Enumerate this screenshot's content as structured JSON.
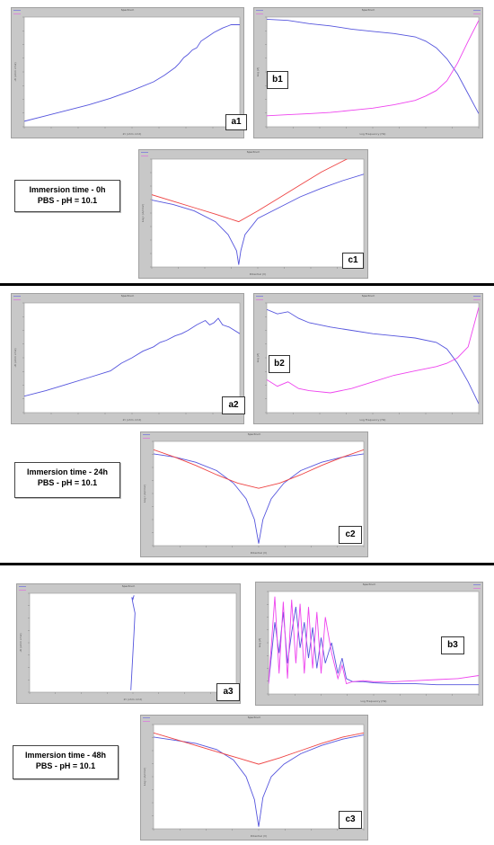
{
  "sections": [
    {
      "info": {
        "line1": "Immersion time - 0h",
        "line2": "PBS - pH = 10.1"
      },
      "charts": [
        {
          "label": "a1",
          "window_title": "Spectrum",
          "xlabel": "Zr (ohm cm2)",
          "ylabel": "-Zi (ohm cm2)"
        },
        {
          "label": "b1",
          "window_title": "Spectrum",
          "xlabel": "Log Frequency (Hz)",
          "ylabel": "Log |Z|"
        },
        {
          "label": "c1",
          "window_title": "Spectrum",
          "xlabel": "Potential (V)",
          "ylabel": "Log i (A/cm2)"
        }
      ]
    },
    {
      "info": {
        "line1": "Immersion time - 24h",
        "line2": "PBS - pH = 10.1"
      },
      "charts": [
        {
          "label": "a2",
          "window_title": "Spectrum",
          "xlabel": "Zr (ohm cm2)",
          "ylabel": "-Zi (ohm cm2)"
        },
        {
          "label": "b2",
          "window_title": "Spectrum",
          "xlabel": "Log Frequency (Hz)",
          "ylabel": "Log |Z|"
        },
        {
          "label": "c2",
          "window_title": "Spectrum",
          "xlabel": "Potential (V)",
          "ylabel": "Log i (A/cm2)"
        }
      ]
    },
    {
      "info": {
        "line1": "Immersion time - 48h",
        "line2": "PBS - pH = 10.1"
      },
      "charts": [
        {
          "label": "a3",
          "window_title": "Spectrum",
          "xlabel": "Zr (ohm cm2)",
          "ylabel": "-Zi (ohm cm2)"
        },
        {
          "label": "b3",
          "window_title": "Spectrum",
          "xlabel": "Log Frequency (Hz)",
          "ylabel": "Log |Z|"
        },
        {
          "label": "c3",
          "window_title": "Spectrum",
          "xlabel": "Potential (V)",
          "ylabel": "Log i (A/cm2)"
        }
      ]
    }
  ],
  "colors": {
    "blue_series": "#5555dd",
    "magenta_series": "#ee44ee",
    "red_tafel": "#ee4444",
    "window_bg": "#c8c8c8"
  },
  "chart_data": [
    {
      "id": "a1",
      "type": "line",
      "xlim": [
        0,
        100
      ],
      "ylim": [
        0,
        100
      ],
      "series": [
        {
          "color": "#5555dd",
          "x": [
            0,
            10,
            20,
            30,
            40,
            50,
            60,
            65,
            70,
            72,
            74,
            76,
            78,
            80,
            82,
            85,
            88,
            92,
            96,
            100
          ],
          "y": [
            5,
            10,
            15,
            20,
            26,
            33,
            41,
            47,
            54,
            58,
            63,
            66,
            70,
            72,
            78,
            82,
            86,
            90,
            93,
            93
          ]
        }
      ]
    },
    {
      "id": "b1",
      "type": "line",
      "xlim": [
        0,
        100
      ],
      "ylim": [
        0,
        100
      ],
      "series": [
        {
          "color": "#5555dd",
          "x": [
            0,
            10,
            20,
            30,
            40,
            50,
            60,
            70,
            75,
            80,
            85,
            90,
            95,
            100
          ],
          "y": [
            98,
            97,
            94,
            92,
            89,
            87,
            85,
            82,
            78,
            72,
            62,
            48,
            30,
            12
          ]
        },
        {
          "color": "#ee44ee",
          "x": [
            0,
            10,
            20,
            30,
            40,
            50,
            60,
            70,
            75,
            80,
            85,
            90,
            95,
            100
          ],
          "y": [
            10,
            11,
            12,
            13,
            15,
            17,
            20,
            24,
            28,
            33,
            42,
            58,
            78,
            97
          ]
        }
      ]
    },
    {
      "id": "c1",
      "type": "line",
      "xlim": [
        0,
        100
      ],
      "ylim": [
        0,
        100
      ],
      "series": [
        {
          "color": "#5555dd",
          "x": [
            0,
            10,
            20,
            30,
            36,
            40,
            41,
            42,
            44,
            50,
            60,
            70,
            80,
            90,
            100
          ],
          "y": [
            62,
            58,
            52,
            42,
            30,
            15,
            2,
            15,
            30,
            45,
            55,
            65,
            73,
            80,
            86
          ]
        },
        {
          "color": "#ee4444",
          "x": [
            0,
            10,
            20,
            30,
            41,
            50,
            60,
            70,
            80,
            90,
            100
          ],
          "y": [
            67,
            61,
            55,
            49,
            42,
            52,
            64,
            76,
            88,
            98,
            108
          ]
        }
      ]
    },
    {
      "id": "a2",
      "type": "line",
      "xlim": [
        0,
        100
      ],
      "ylim": [
        0,
        100
      ],
      "series": [
        {
          "color": "#5555dd",
          "x": [
            0,
            10,
            20,
            30,
            40,
            45,
            50,
            55,
            60,
            63,
            66,
            70,
            73,
            76,
            80,
            84,
            86,
            88,
            90,
            92,
            95,
            100
          ],
          "y": [
            15,
            20,
            26,
            32,
            38,
            45,
            50,
            56,
            60,
            64,
            66,
            70,
            72,
            75,
            80,
            84,
            80,
            82,
            86,
            80,
            78,
            72
          ]
        }
      ]
    },
    {
      "id": "b2",
      "type": "line",
      "xlim": [
        0,
        100
      ],
      "ylim": [
        0,
        100
      ],
      "series": [
        {
          "color": "#5555dd",
          "x": [
            0,
            5,
            10,
            15,
            20,
            30,
            40,
            50,
            60,
            70,
            80,
            85,
            90,
            95,
            100
          ],
          "y": [
            94,
            90,
            92,
            86,
            82,
            78,
            75,
            72,
            70,
            68,
            64,
            58,
            45,
            28,
            8
          ]
        },
        {
          "color": "#ee44ee",
          "x": [
            0,
            5,
            10,
            15,
            20,
            30,
            40,
            50,
            60,
            70,
            80,
            85,
            90,
            95,
            100
          ],
          "y": [
            30,
            24,
            28,
            22,
            20,
            18,
            22,
            28,
            34,
            38,
            42,
            45,
            50,
            60,
            96
          ]
        }
      ]
    },
    {
      "id": "c2",
      "type": "line",
      "xlim": [
        0,
        100
      ],
      "ylim": [
        0,
        100
      ],
      "series": [
        {
          "color": "#5555dd",
          "x": [
            0,
            10,
            20,
            30,
            38,
            44,
            48,
            50,
            52,
            56,
            62,
            70,
            80,
            90,
            100
          ],
          "y": [
            88,
            85,
            80,
            72,
            60,
            45,
            25,
            2,
            25,
            45,
            60,
            72,
            80,
            85,
            88
          ]
        },
        {
          "color": "#ee4444",
          "x": [
            0,
            10,
            20,
            30,
            40,
            50,
            60,
            70,
            80,
            90,
            100
          ],
          "y": [
            92,
            85,
            77,
            68,
            60,
            55,
            60,
            68,
            77,
            85,
            92
          ]
        }
      ]
    },
    {
      "id": "a3",
      "type": "line",
      "xlim": [
        0,
        100
      ],
      "ylim": [
        0,
        100
      ],
      "series": [
        {
          "color": "#5555dd",
          "x": [
            49,
            49.5,
            50,
            50.5,
            51,
            50,
            49.5,
            50,
            50.5
          ],
          "y": [
            2,
            20,
            40,
            60,
            80,
            90,
            96,
            94,
            98
          ]
        }
      ]
    },
    {
      "id": "b3",
      "type": "line",
      "xlim": [
        0,
        100
      ],
      "ylim": [
        0,
        100
      ],
      "series": [
        {
          "color": "#5555dd",
          "x": [
            0,
            3,
            5,
            7,
            9,
            11,
            13,
            15,
            17,
            19,
            21,
            23,
            25,
            27,
            30,
            33,
            35,
            37,
            40,
            45,
            50,
            60,
            70,
            80,
            90,
            100
          ],
          "y": [
            10,
            70,
            40,
            80,
            30,
            60,
            85,
            45,
            70,
            35,
            65,
            25,
            55,
            30,
            50,
            20,
            35,
            15,
            12,
            12,
            11,
            10,
            10,
            9,
            9,
            9
          ]
        },
        {
          "color": "#ee44ee",
          "x": [
            0,
            3,
            5,
            7,
            9,
            11,
            13,
            15,
            17,
            19,
            21,
            23,
            25,
            27,
            30,
            33,
            35,
            37,
            40,
            45,
            50,
            60,
            70,
            80,
            90,
            100
          ],
          "y": [
            10,
            95,
            20,
            90,
            15,
            92,
            30,
            88,
            20,
            85,
            25,
            80,
            20,
            75,
            40,
            15,
            28,
            10,
            12,
            13,
            12,
            12,
            13,
            14,
            15,
            18
          ]
        }
      ]
    },
    {
      "id": "c3",
      "type": "line",
      "xlim": [
        0,
        100
      ],
      "ylim": [
        0,
        100
      ],
      "series": [
        {
          "color": "#5555dd",
          "x": [
            0,
            10,
            20,
            30,
            38,
            44,
            48,
            50,
            52,
            56,
            62,
            70,
            80,
            90,
            100
          ],
          "y": [
            88,
            85,
            82,
            76,
            66,
            50,
            28,
            2,
            30,
            50,
            62,
            72,
            80,
            86,
            90
          ]
        },
        {
          "color": "#ee4444",
          "x": [
            0,
            10,
            20,
            30,
            40,
            50,
            60,
            70,
            80,
            90,
            100
          ],
          "y": [
            92,
            86,
            80,
            74,
            68,
            62,
            68,
            75,
            82,
            88,
            92
          ]
        }
      ]
    }
  ]
}
